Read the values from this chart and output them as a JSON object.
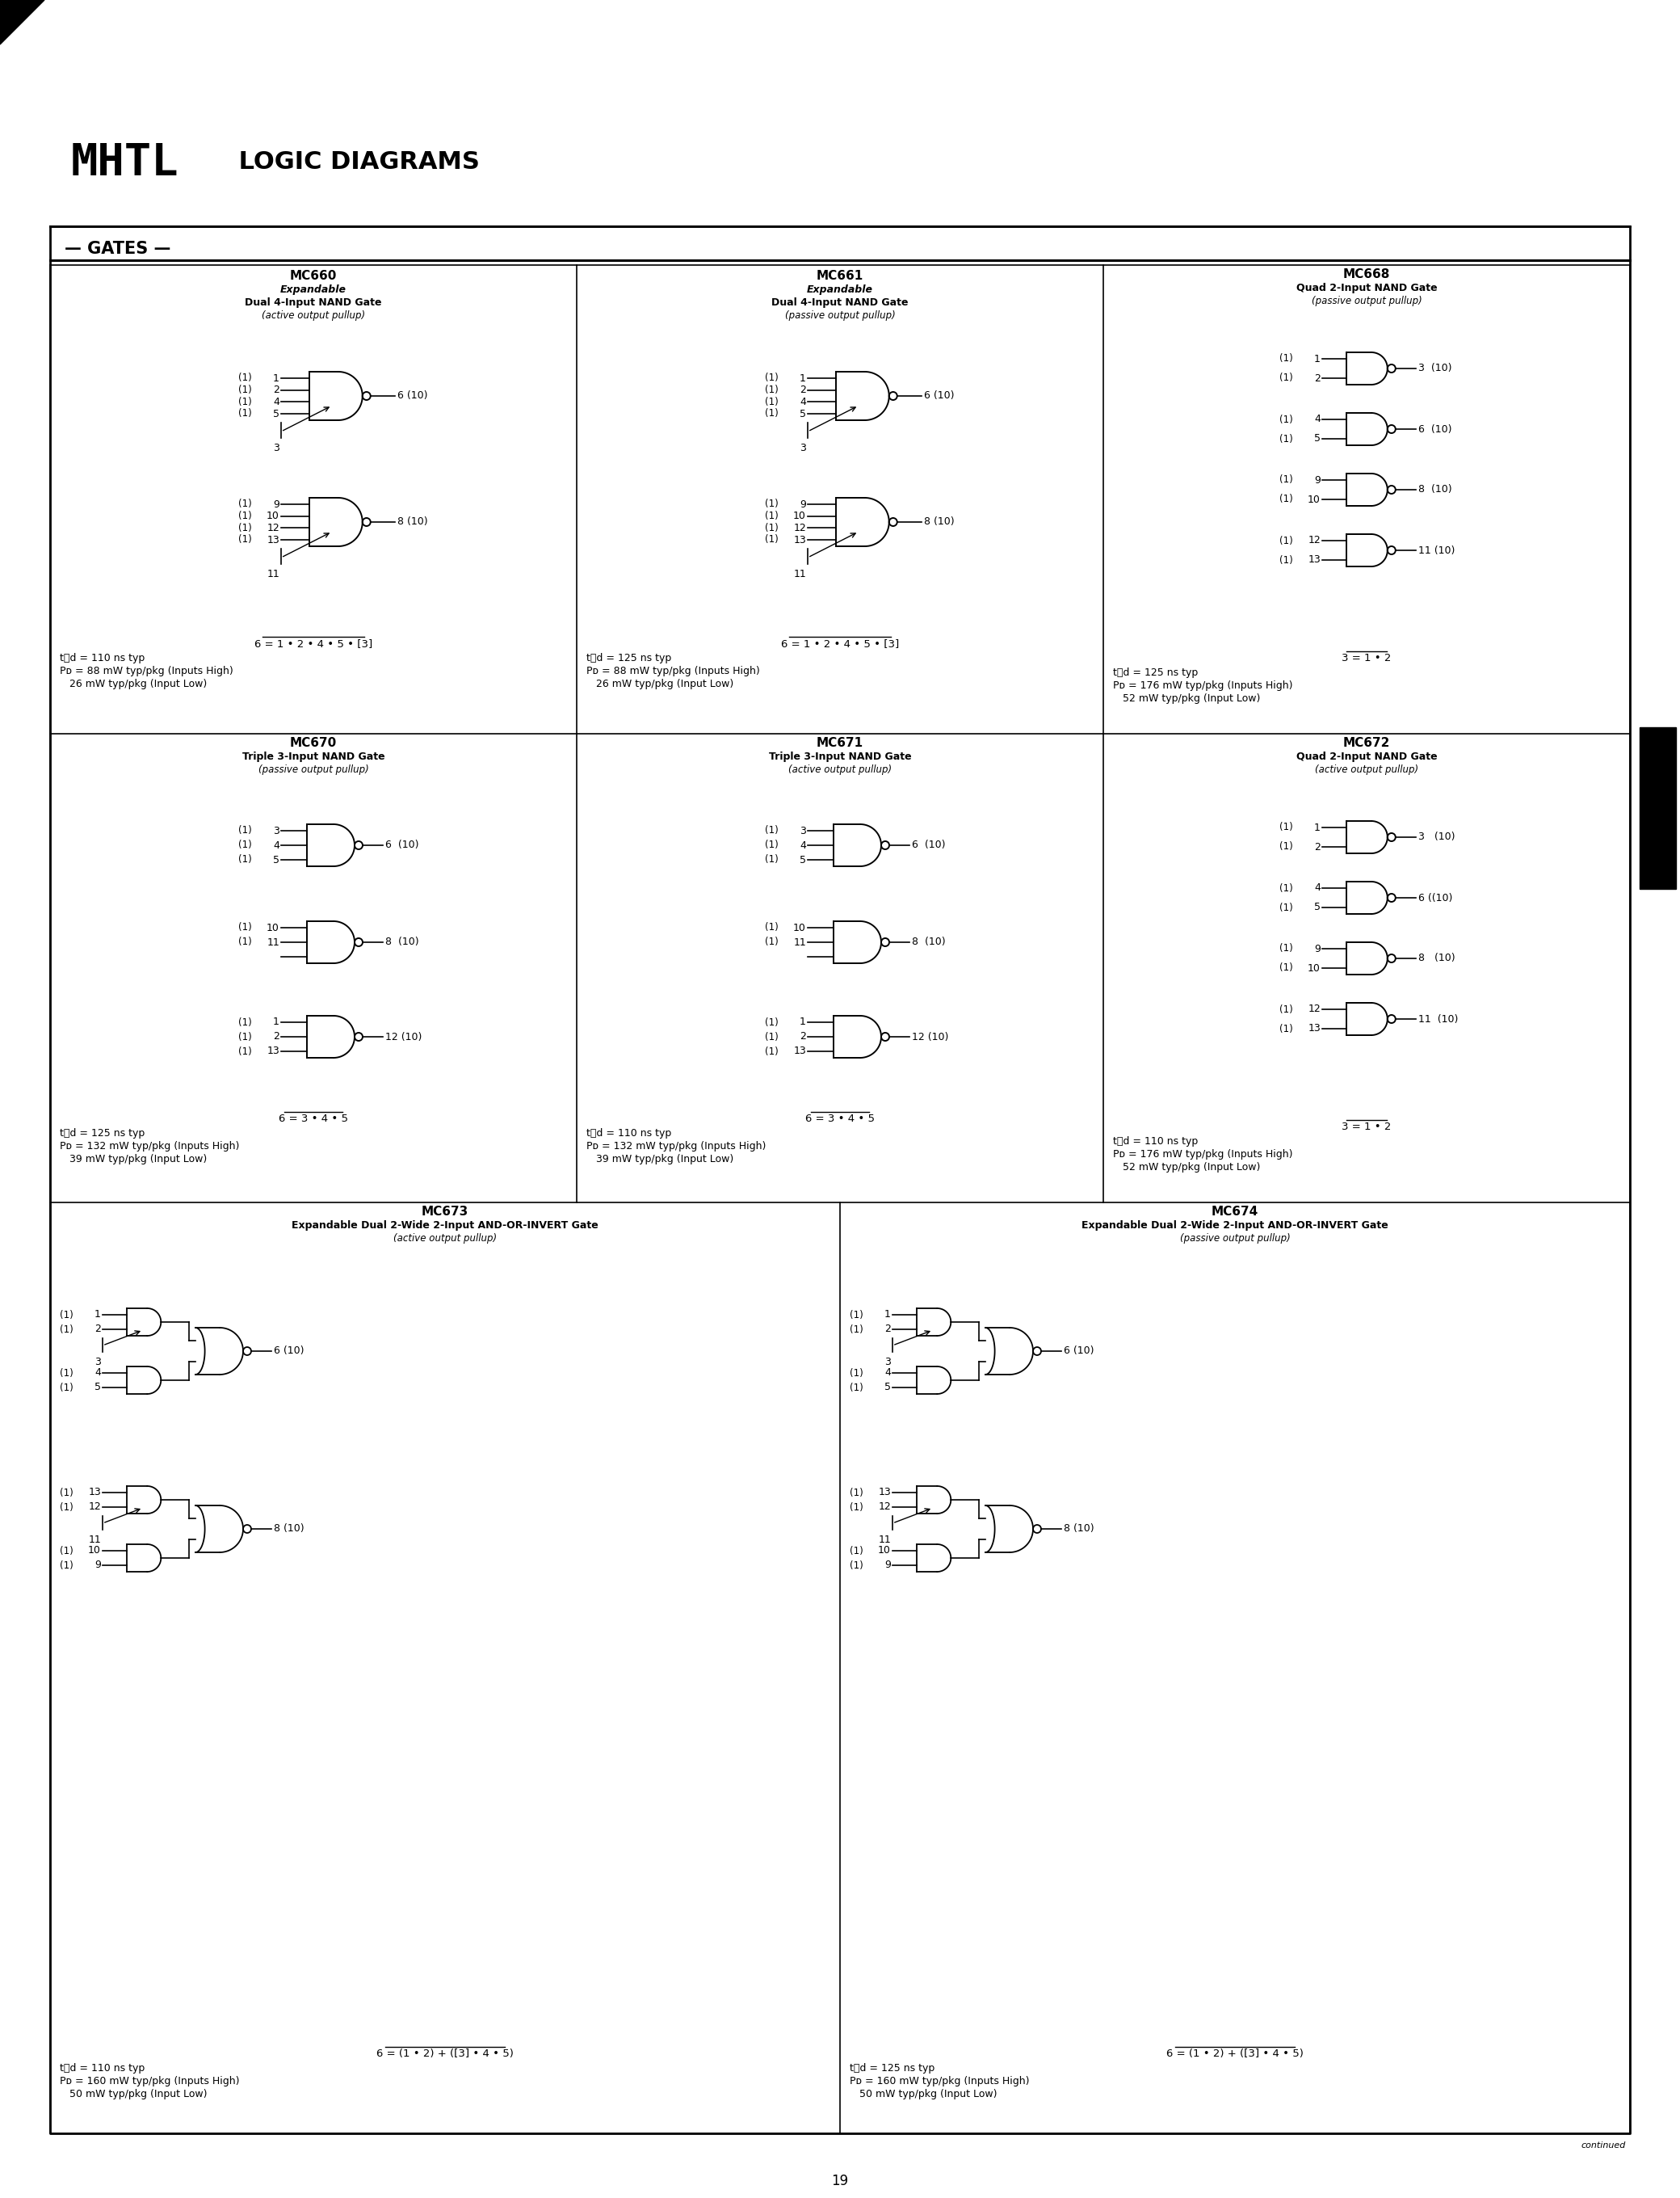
{
  "bg_color": "#ffffff",
  "page_number": "19",
  "title_mhtl": "MHTL",
  "title_rest": " LOGIC DIAGRAMS",
  "section": "GATES",
  "cells": [
    {
      "id": "MC660",
      "line1": "MC660",
      "line2": "Expandable",
      "line3": "Dual 4-Input NAND Gate",
      "line4": "(active output pullup)",
      "equation": "6 = 1 • 2 • 4 • 5 • [3]",
      "tpd": "t₝d = 110 ns typ",
      "pd1": "Pᴅ = 88 mW typ/pkg (Inputs High)",
      "pd2": "   26 mW typ/pkg (Input Low)"
    },
    {
      "id": "MC661",
      "line1": "MC661",
      "line2": "Expandable",
      "line3": "Dual 4-Input NAND Gate",
      "line4": "(passive output pullup)",
      "equation": "6 = 1 • 2 • 4 • 5 • [3]",
      "tpd": "t₝d = 125 ns typ",
      "pd1": "Pᴅ = 88 mW typ/pkg (Inputs High)",
      "pd2": "   26 mW typ/pkg (Input Low)"
    },
    {
      "id": "MC668",
      "line1": "MC668",
      "line2": "Quad 2-Input NAND Gate",
      "line3": "(passive output pullup)",
      "line4": "",
      "equation": "3 = 1 • 2",
      "tpd": "t₝d = 125 ns typ",
      "pd1": "Pᴅ = 176 mW typ/pkg (Inputs High)",
      "pd2": "   52 mW typ/pkg (Input Low)"
    },
    {
      "id": "MC670",
      "line1": "MC670",
      "line2": "Triple 3-Input NAND Gate",
      "line3": "(passive output pullup)",
      "line4": "",
      "equation": "6 = 3 • 4 • 5",
      "tpd": "t₝d = 125 ns typ",
      "pd1": "Pᴅ = 132 mW typ/pkg (Inputs High)",
      "pd2": "   39 mW typ/pkg (Input Low)"
    },
    {
      "id": "MC671",
      "line1": "MC671",
      "line2": "Triple 3-Input NAND Gate",
      "line3": "(active output pullup)",
      "line4": "",
      "equation": "6 = 3 • 4 • 5",
      "tpd": "t₝d = 110 ns typ",
      "pd1": "Pᴅ = 132 mW typ/pkg (Inputs High)",
      "pd2": "   39 mW typ/pkg (Input Low)"
    },
    {
      "id": "MC672",
      "line1": "MC672",
      "line2": "Quad 2-Input NAND Gate",
      "line3": "(active output pullup)",
      "line4": "",
      "equation": "3 = 1 • 2",
      "tpd": "t₝d = 110 ns typ",
      "pd1": "Pᴅ = 176 mW typ/pkg (Inputs High)",
      "pd2": "   52 mW typ/pkg (Input Low)"
    },
    {
      "id": "MC673",
      "line1": "MC673",
      "line2": "Expandable Dual 2-Wide 2-Input AND-OR-INVERT Gate",
      "line3": "(active output pullup)",
      "line4": "",
      "equation": "6 = (1 • 2) + ([3] • 4 • 5)",
      "tpd": "t₝d = 110 ns typ",
      "pd1": "Pᴅ = 160 mW typ/pkg (Inputs High)",
      "pd2": "   50 mW typ/pkg (Input Low)"
    },
    {
      "id": "MC674",
      "line1": "MC674",
      "line2": "Expandable Dual 2-Wide 2-Input AND-OR-INVERT Gate",
      "line3": "(passive output pullup)",
      "line4": "",
      "equation": "6 = (1 • 2) + ([3] • 4 • 5)",
      "tpd": "t₝d = 125 ns typ",
      "pd1": "Pᴅ = 160 mW typ/pkg (Inputs High)",
      "pd2": "   50 mW typ/pkg (Input Low)"
    }
  ]
}
